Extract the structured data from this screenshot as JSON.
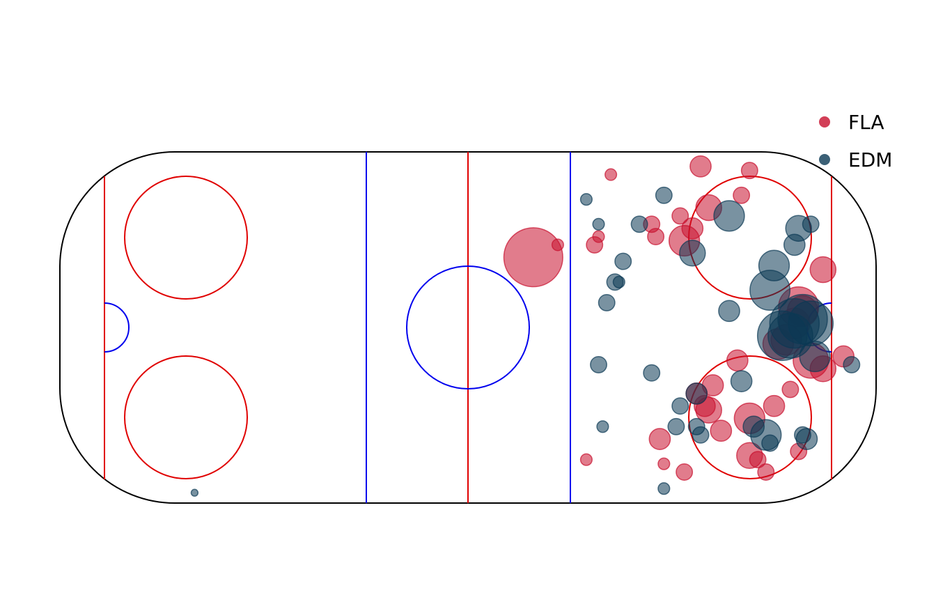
{
  "chart_data": {
    "type": "scatter",
    "title": "",
    "xlabel": "",
    "ylabel": "",
    "xlim": [
      -100,
      100
    ],
    "ylim": [
      -42.5,
      42.5
    ],
    "grid": false,
    "legend": {
      "placement": "top-right"
    },
    "series": [
      {
        "name": "FLA",
        "color": "#c8102e",
        "points": [
          {
            "x": 57,
            "y": 39,
            "size": 4
          },
          {
            "x": 69,
            "y": 38,
            "size": 3
          },
          {
            "x": 35,
            "y": 37,
            "size": 2
          },
          {
            "x": 67,
            "y": 32,
            "size": 3
          },
          {
            "x": 59,
            "y": 29,
            "size": 5
          },
          {
            "x": 45,
            "y": 25,
            "size": 3
          },
          {
            "x": 52,
            "y": 27,
            "size": 3
          },
          {
            "x": 55,
            "y": 24,
            "size": 4
          },
          {
            "x": 46,
            "y": 22,
            "size": 3
          },
          {
            "x": 53,
            "y": 21,
            "size": 6
          },
          {
            "x": 32,
            "y": 22,
            "size": 2
          },
          {
            "x": 31,
            "y": 20,
            "size": 3
          },
          {
            "x": 16,
            "y": 17,
            "size": 12
          },
          {
            "x": 22,
            "y": 20,
            "size": 2
          },
          {
            "x": 87,
            "y": 14,
            "size": 5
          },
          {
            "x": 81,
            "y": 5,
            "size": 8
          },
          {
            "x": 82,
            "y": 4,
            "size": 6
          },
          {
            "x": 80,
            "y": 1,
            "size": 6
          },
          {
            "x": 78,
            "y": -3,
            "size": 6
          },
          {
            "x": 76,
            "y": -4,
            "size": 6
          },
          {
            "x": 84,
            "y": -8,
            "size": 7
          },
          {
            "x": 87,
            "y": -10,
            "size": 5
          },
          {
            "x": 92,
            "y": -7,
            "size": 4
          },
          {
            "x": 66,
            "y": -8,
            "size": 4
          },
          {
            "x": 60,
            "y": -14,
            "size": 4
          },
          {
            "x": 56,
            "y": -16,
            "size": 4
          },
          {
            "x": 58,
            "y": -19,
            "size": 4
          },
          {
            "x": 59,
            "y": -20,
            "size": 5
          },
          {
            "x": 62,
            "y": -25,
            "size": 4
          },
          {
            "x": 69,
            "y": -22,
            "size": 6
          },
          {
            "x": 75,
            "y": -19,
            "size": 4
          },
          {
            "x": 79,
            "y": -15,
            "size": 3
          },
          {
            "x": 47,
            "y": -27,
            "size": 4
          },
          {
            "x": 69,
            "y": -31,
            "size": 5
          },
          {
            "x": 71,
            "y": -32,
            "size": 3
          },
          {
            "x": 73,
            "y": -35,
            "size": 3
          },
          {
            "x": 81,
            "y": -30,
            "size": 3
          },
          {
            "x": 29,
            "y": -32,
            "size": 2
          },
          {
            "x": 48,
            "y": -33,
            "size": 2
          },
          {
            "x": 53,
            "y": -35,
            "size": 3
          }
        ]
      },
      {
        "name": "EDM",
        "color": "#0b3954",
        "points": [
          {
            "x": 29,
            "y": 31,
            "size": 2
          },
          {
            "x": 48,
            "y": 32,
            "size": 3
          },
          {
            "x": 32,
            "y": 25,
            "size": 2
          },
          {
            "x": 42,
            "y": 25,
            "size": 3
          },
          {
            "x": 64,
            "y": 27,
            "size": 6
          },
          {
            "x": 81,
            "y": 24,
            "size": 5
          },
          {
            "x": 84,
            "y": 25,
            "size": 3
          },
          {
            "x": 80,
            "y": 20,
            "size": 4
          },
          {
            "x": 55,
            "y": 18,
            "size": 5
          },
          {
            "x": 38,
            "y": 16,
            "size": 3
          },
          {
            "x": 75,
            "y": 15,
            "size": 6
          },
          {
            "x": 37,
            "y": 11,
            "size": 2
          },
          {
            "x": 36,
            "y": 11,
            "size": 3
          },
          {
            "x": 74,
            "y": 9,
            "size": 8
          },
          {
            "x": 34,
            "y": 6,
            "size": 3
          },
          {
            "x": 64,
            "y": 4,
            "size": 4
          },
          {
            "x": 82,
            "y": 2,
            "size": 10
          },
          {
            "x": 80,
            "y": 1,
            "size": 10
          },
          {
            "x": 84,
            "y": 1,
            "size": 9
          },
          {
            "x": 79,
            "y": -2,
            "size": 9
          },
          {
            "x": 77,
            "y": -2,
            "size": 10
          },
          {
            "x": 85,
            "y": -7,
            "size": 6
          },
          {
            "x": 94,
            "y": -9,
            "size": 3
          },
          {
            "x": 32,
            "y": -9,
            "size": 3
          },
          {
            "x": 45,
            "y": -11,
            "size": 3
          },
          {
            "x": 67,
            "y": -13,
            "size": 4
          },
          {
            "x": 56,
            "y": -16,
            "size": 4
          },
          {
            "x": 52,
            "y": -19,
            "size": 3
          },
          {
            "x": 51,
            "y": -24,
            "size": 3
          },
          {
            "x": 56,
            "y": -24,
            "size": 3
          },
          {
            "x": 57,
            "y": -26,
            "size": 3
          },
          {
            "x": 70,
            "y": -24,
            "size": 4
          },
          {
            "x": 73,
            "y": -26,
            "size": 6
          },
          {
            "x": 74,
            "y": -28,
            "size": 3
          },
          {
            "x": 82,
            "y": -26,
            "size": 3
          },
          {
            "x": 83,
            "y": -27,
            "size": 4
          },
          {
            "x": 33,
            "y": -24,
            "size": 2
          },
          {
            "x": 48,
            "y": -39,
            "size": 2
          },
          {
            "x": -67,
            "y": -40,
            "size": 1
          }
        ]
      }
    ]
  }
}
